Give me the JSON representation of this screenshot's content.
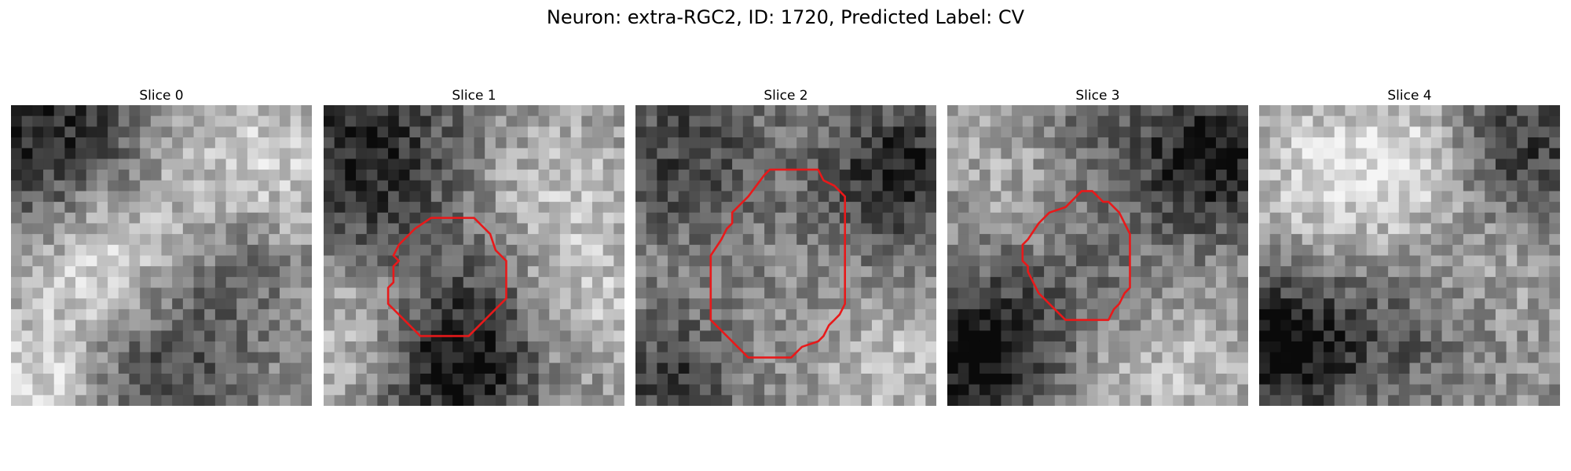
{
  "figure": {
    "title": "Neuron: extra-RGC2, ID: 1720, Predicted Label: CV"
  },
  "panels": [
    {
      "title": "Slice 0",
      "has_contour": false,
      "seed": 11,
      "contour_color": "#e8191a"
    },
    {
      "title": "Slice 1",
      "has_contour": true,
      "seed": 23,
      "contour_color": "#e8191a"
    },
    {
      "title": "Slice 2",
      "has_contour": true,
      "seed": 37,
      "contour_color": "#e8191a"
    },
    {
      "title": "Slice 3",
      "has_contour": true,
      "seed": 51,
      "contour_color": "#e8191a"
    },
    {
      "title": "Slice 4",
      "has_contour": false,
      "seed": 67,
      "contour_color": "#e8191a"
    }
  ]
}
